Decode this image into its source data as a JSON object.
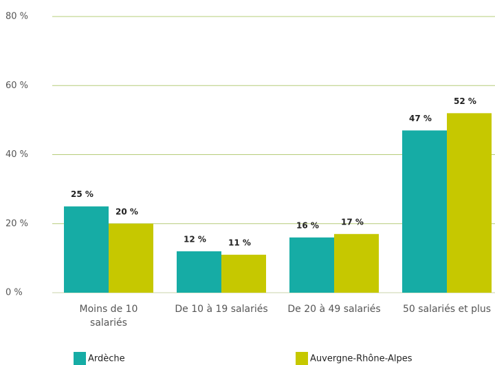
{
  "chart_data": {
    "type": "bar",
    "categories": [
      "Moins de 10 salariés",
      "De 10 à 19 salariés",
      "De 20 à 49 salariés",
      "50 salariés et plus"
    ],
    "series": [
      {
        "name": "Ardèche",
        "color": "#16aca5",
        "values": [
          25,
          12,
          16,
          47
        ],
        "value_labels": [
          "25 %",
          "12 %",
          "16 %",
          "47 %"
        ]
      },
      {
        "name": "Auvergne-Rhône-Alpes",
        "color": "#c6c800",
        "values": [
          20,
          11,
          17,
          52
        ],
        "value_labels": [
          "20 %",
          "11 %",
          "17 %",
          "52 %"
        ]
      }
    ],
    "ylim": [
      0,
      80
    ],
    "yticks": [
      {
        "value": 0,
        "label": "0 %"
      },
      {
        "value": 20,
        "label": "20 %"
      },
      {
        "value": 40,
        "label": "40 %"
      },
      {
        "value": 60,
        "label": "60 %"
      },
      {
        "value": 80,
        "label": "80 %"
      }
    ],
    "grid": true,
    "legend": "bottom"
  }
}
